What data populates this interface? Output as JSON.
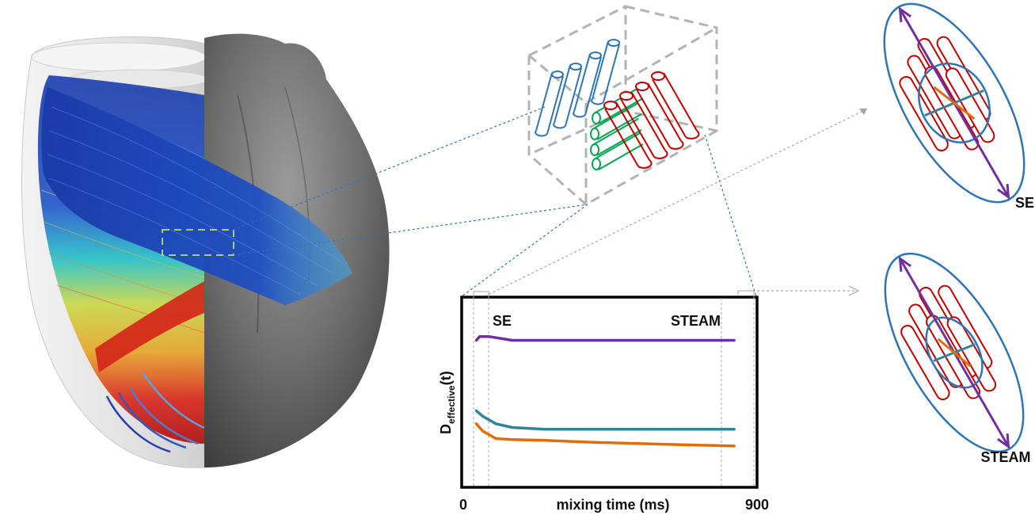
{
  "labels": {
    "se_right": "SE",
    "steam_right": "STEAM",
    "se_plot": "SE",
    "steam_plot": "STEAM",
    "ylabel_main": "D",
    "ylabel_sub": "effective",
    "ylabel_tail": "(t)",
    "xlabel": "mixing time (ms)",
    "x_min": "0",
    "x_max": "900"
  },
  "colors": {
    "purple": "#7030a0",
    "teal": "#31849b",
    "orange": "#e36c09",
    "red_cyl": "#c00000",
    "blue_cyl": "#2e75b6",
    "green_cyl": "#00a651",
    "ellipsoid": "#2e75b6",
    "dash_gray": "#a6a6a6",
    "dash_blue": "#2e75b6"
  },
  "chart_data": {
    "type": "line",
    "xlabel": "mixing time (ms)",
    "ylabel": "D_effective(t)",
    "xlim": [
      0,
      900
    ],
    "x_ticks": [
      "0",
      "900"
    ],
    "annotations": [
      "SE",
      "STEAM"
    ],
    "series": [
      {
        "color": "#7030a0",
        "x": [
          40,
          50,
          80,
          150,
          300,
          500,
          700,
          830
        ],
        "y": [
          0.78,
          0.8,
          0.8,
          0.78,
          0.78,
          0.78,
          0.78,
          0.78
        ]
      },
      {
        "color": "#31849b",
        "x": [
          40,
          60,
          100,
          150,
          250,
          400,
          600,
          830
        ],
        "y": [
          0.4,
          0.37,
          0.33,
          0.31,
          0.3,
          0.3,
          0.3,
          0.3
        ]
      },
      {
        "color": "#e36c09",
        "x": [
          40,
          60,
          100,
          150,
          250,
          400,
          600,
          830
        ],
        "y": [
          0.33,
          0.29,
          0.25,
          0.245,
          0.24,
          0.23,
          0.22,
          0.21
        ]
      }
    ],
    "grid": false
  },
  "icons": [
    "heart-fiber-tractography",
    "voxel-box",
    "fiber-cylinders",
    "diffusion-ellipsoid"
  ]
}
